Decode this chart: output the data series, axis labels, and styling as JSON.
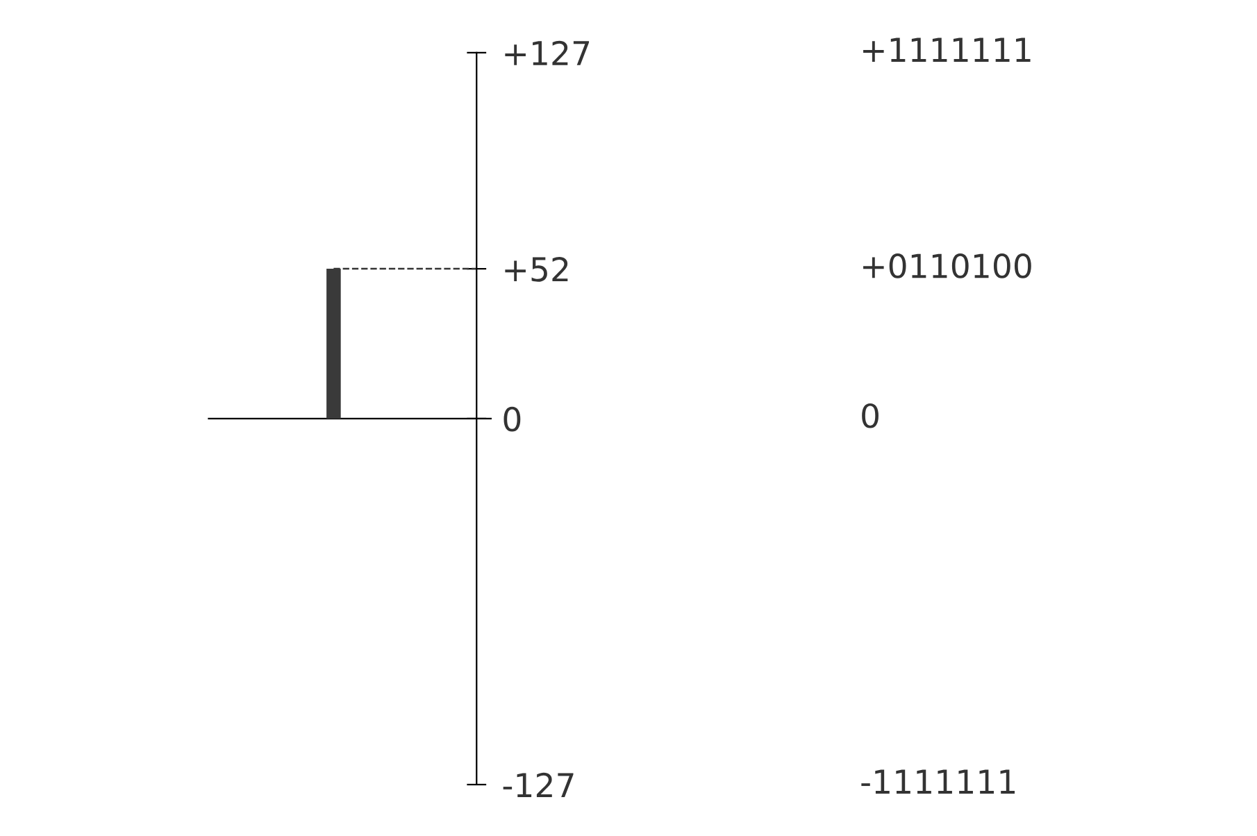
{
  "chart_data": {
    "type": "bar",
    "categories": [
      null
    ],
    "values": [
      52
    ],
    "color": "#3a3a3a",
    "ylim": [
      -127,
      127
    ],
    "yticks": [
      {
        "value": 127,
        "label": "+127"
      },
      {
        "value": 52,
        "label": "+52"
      },
      0,
      -127
    ],
    "annotations": [
      "+1111111",
      "+0110100",
      "0",
      "-1111111"
    ],
    "ref_lines": [
      {
        "axis": "y",
        "value": 52,
        "line_style": "dashed",
        "color": "#333333"
      }
    ],
    "grid": false,
    "legend": false
  }
}
